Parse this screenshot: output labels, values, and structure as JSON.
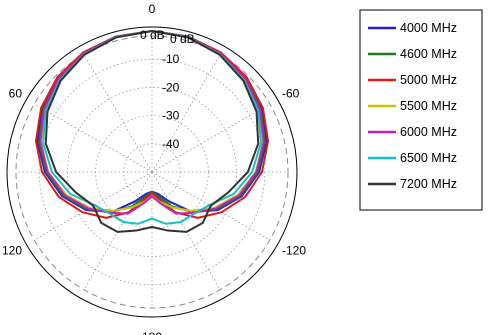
{
  "chart_data": {
    "type": "polar-line",
    "title": "",
    "units_label": "0 dB",
    "radial_axis": {
      "range_db": [
        -50,
        0
      ],
      "rings_db": [
        0,
        -10,
        -20,
        -30,
        -40
      ],
      "ring_labels": [
        "0 dB",
        "-10",
        "-20",
        "-30",
        "-40"
      ],
      "ring_label_overlap": "0 dB"
    },
    "angular_axis": {
      "direction": "clockwise",
      "zero_at": "top",
      "tick_labels": [
        {
          "angle": 0,
          "label": "0"
        },
        {
          "angle": 60,
          "label": "-60"
        },
        {
          "angle": 120,
          "label": "-120"
        },
        {
          "angle": 180,
          "label": "180"
        },
        {
          "angle": 240,
          "label": "120"
        },
        {
          "angle": 300,
          "label": "60"
        }
      ]
    },
    "grid": true,
    "legend_position": "right",
    "angles_deg": [
      0,
      15,
      30,
      45,
      60,
      75,
      90,
      105,
      120,
      135,
      150,
      165,
      180,
      195,
      210,
      225,
      240,
      255,
      270,
      285,
      300,
      315,
      330,
      345
    ],
    "series": [
      {
        "name": "4000 MHz",
        "color": "#1f1fd6",
        "values_db": [
          0,
          -0.3,
          -1.2,
          -2.8,
          -5.0,
          -8.0,
          -12.0,
          -17.0,
          -23.0,
          -30.0,
          -38.0,
          -42.0,
          -43.0,
          -42.0,
          -38.0,
          -30.0,
          -23.0,
          -17.0,
          -12.0,
          -8.0,
          -5.0,
          -2.8,
          -1.2,
          -0.3
        ]
      },
      {
        "name": "4600 MHz",
        "color": "#1a7d1a",
        "values_db": [
          0,
          -0.4,
          -1.4,
          -3.0,
          -5.5,
          -8.5,
          -12.5,
          -17.5,
          -23.5,
          -30.0,
          -36.0,
          -41.0,
          -43.0,
          -41.0,
          -36.0,
          -30.0,
          -23.5,
          -17.5,
          -12.5,
          -8.5,
          -5.5,
          -3.0,
          -1.4,
          -0.4
        ]
      },
      {
        "name": "5000 MHz",
        "color": "#e01818",
        "values_db": [
          0,
          -0.3,
          -1.1,
          -2.5,
          -4.6,
          -7.4,
          -11.0,
          -15.8,
          -21.5,
          -27.0,
          -33.5,
          -40.0,
          -42.5,
          -40.0,
          -33.5,
          -27.0,
          -21.5,
          -15.8,
          -11.0,
          -7.4,
          -4.6,
          -2.5,
          -1.1,
          -0.3
        ]
      },
      {
        "name": "5500 MHz",
        "color": "#c8c200",
        "values_db": [
          0,
          -0.5,
          -1.6,
          -3.4,
          -6.0,
          -9.2,
          -13.2,
          -18.5,
          -24.5,
          -30.5,
          -35.5,
          -39.0,
          -41.0,
          -39.0,
          -35.5,
          -30.5,
          -24.5,
          -18.5,
          -13.2,
          -9.2,
          -6.0,
          -3.4,
          -1.6,
          -0.5
        ]
      },
      {
        "name": "6000 MHz",
        "color": "#c41fc4",
        "values_db": [
          0,
          -0.4,
          -1.5,
          -3.2,
          -5.8,
          -9.0,
          -13.0,
          -18.0,
          -24.0,
          -29.5,
          -33.0,
          -38.5,
          -41.5,
          -38.5,
          -33.0,
          -29.5,
          -24.0,
          -18.0,
          -13.0,
          -9.0,
          -5.8,
          -3.2,
          -1.5,
          -0.4
        ]
      },
      {
        "name": "6500 MHz",
        "color": "#12c2c2",
        "values_db": [
          0,
          -0.5,
          -1.8,
          -3.8,
          -6.5,
          -10.0,
          -14.5,
          -20.0,
          -26.5,
          -29.0,
          -29.5,
          -31.0,
          -33.5,
          -31.0,
          -29.5,
          -29.0,
          -26.5,
          -20.0,
          -14.5,
          -10.0,
          -6.5,
          -3.8,
          -1.8,
          -0.5
        ]
      },
      {
        "name": "7200 MHz",
        "color": "#333333",
        "values_db": [
          0,
          -0.6,
          -2.0,
          -4.2,
          -7.2,
          -11.0,
          -16.0,
          -22.0,
          -26.0,
          -24.5,
          -25.5,
          -28.5,
          -30.5,
          -28.5,
          -25.5,
          -24.5,
          -26.0,
          -22.0,
          -16.0,
          -11.0,
          -7.2,
          -4.2,
          -2.0,
          -0.6
        ]
      }
    ]
  }
}
